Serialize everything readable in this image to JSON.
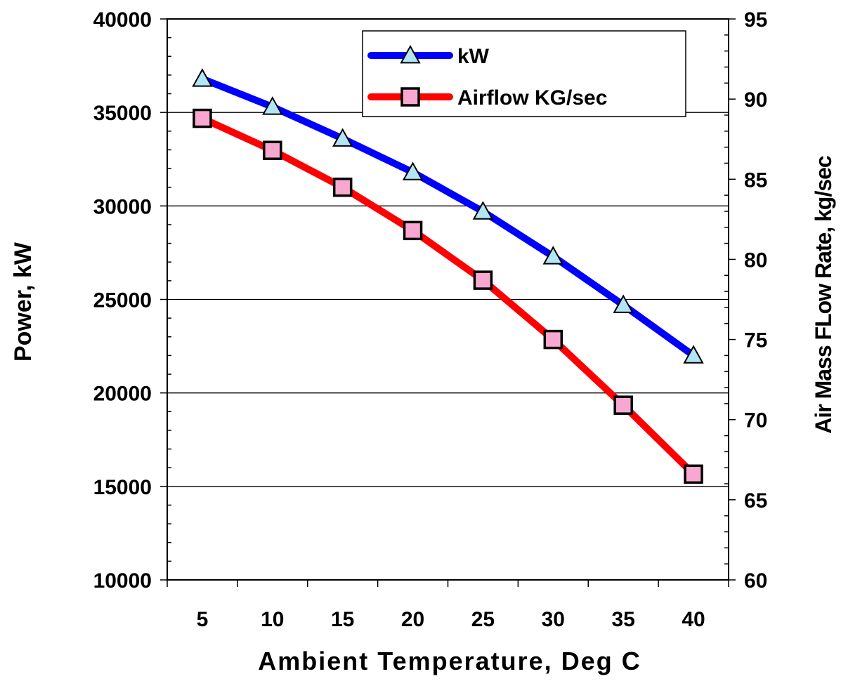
{
  "chart_data": {
    "type": "line",
    "xlabel": "Ambient Temperature, Deg C",
    "ylabel_left": "Power, kW",
    "ylabel_right": "Air Mass FLow Rate,  kg/sec",
    "categories": [
      "5",
      "10",
      "15",
      "20",
      "25",
      "30",
      "35",
      "40"
    ],
    "y_left_ticks": [
      "10000",
      "15000",
      "20000",
      "25000",
      "30000",
      "35000",
      "40000"
    ],
    "y_right_ticks": [
      "60",
      "65",
      "70",
      "75",
      "80",
      "85",
      "90",
      "95"
    ],
    "ylim_left": [
      10000,
      40000
    ],
    "ylim_right": [
      60,
      95
    ],
    "grid": "horizontal major gridlines on left axis",
    "legend_position": "top-right",
    "series": [
      {
        "name": "kW",
        "axis": "left",
        "marker": "triangle",
        "color": "#0000ff",
        "marker_fill": "#b3e6f5",
        "values": [
          36800,
          35300,
          33600,
          31800,
          29700,
          27300,
          24700,
          22000
        ]
      },
      {
        "name": "Airflow KG/sec",
        "axis": "right",
        "marker": "square",
        "color": "#ff0000",
        "marker_fill": "#f8a8d0",
        "values": [
          88.8,
          86.8,
          84.5,
          81.8,
          78.7,
          75.0,
          70.9,
          66.6
        ]
      }
    ]
  }
}
